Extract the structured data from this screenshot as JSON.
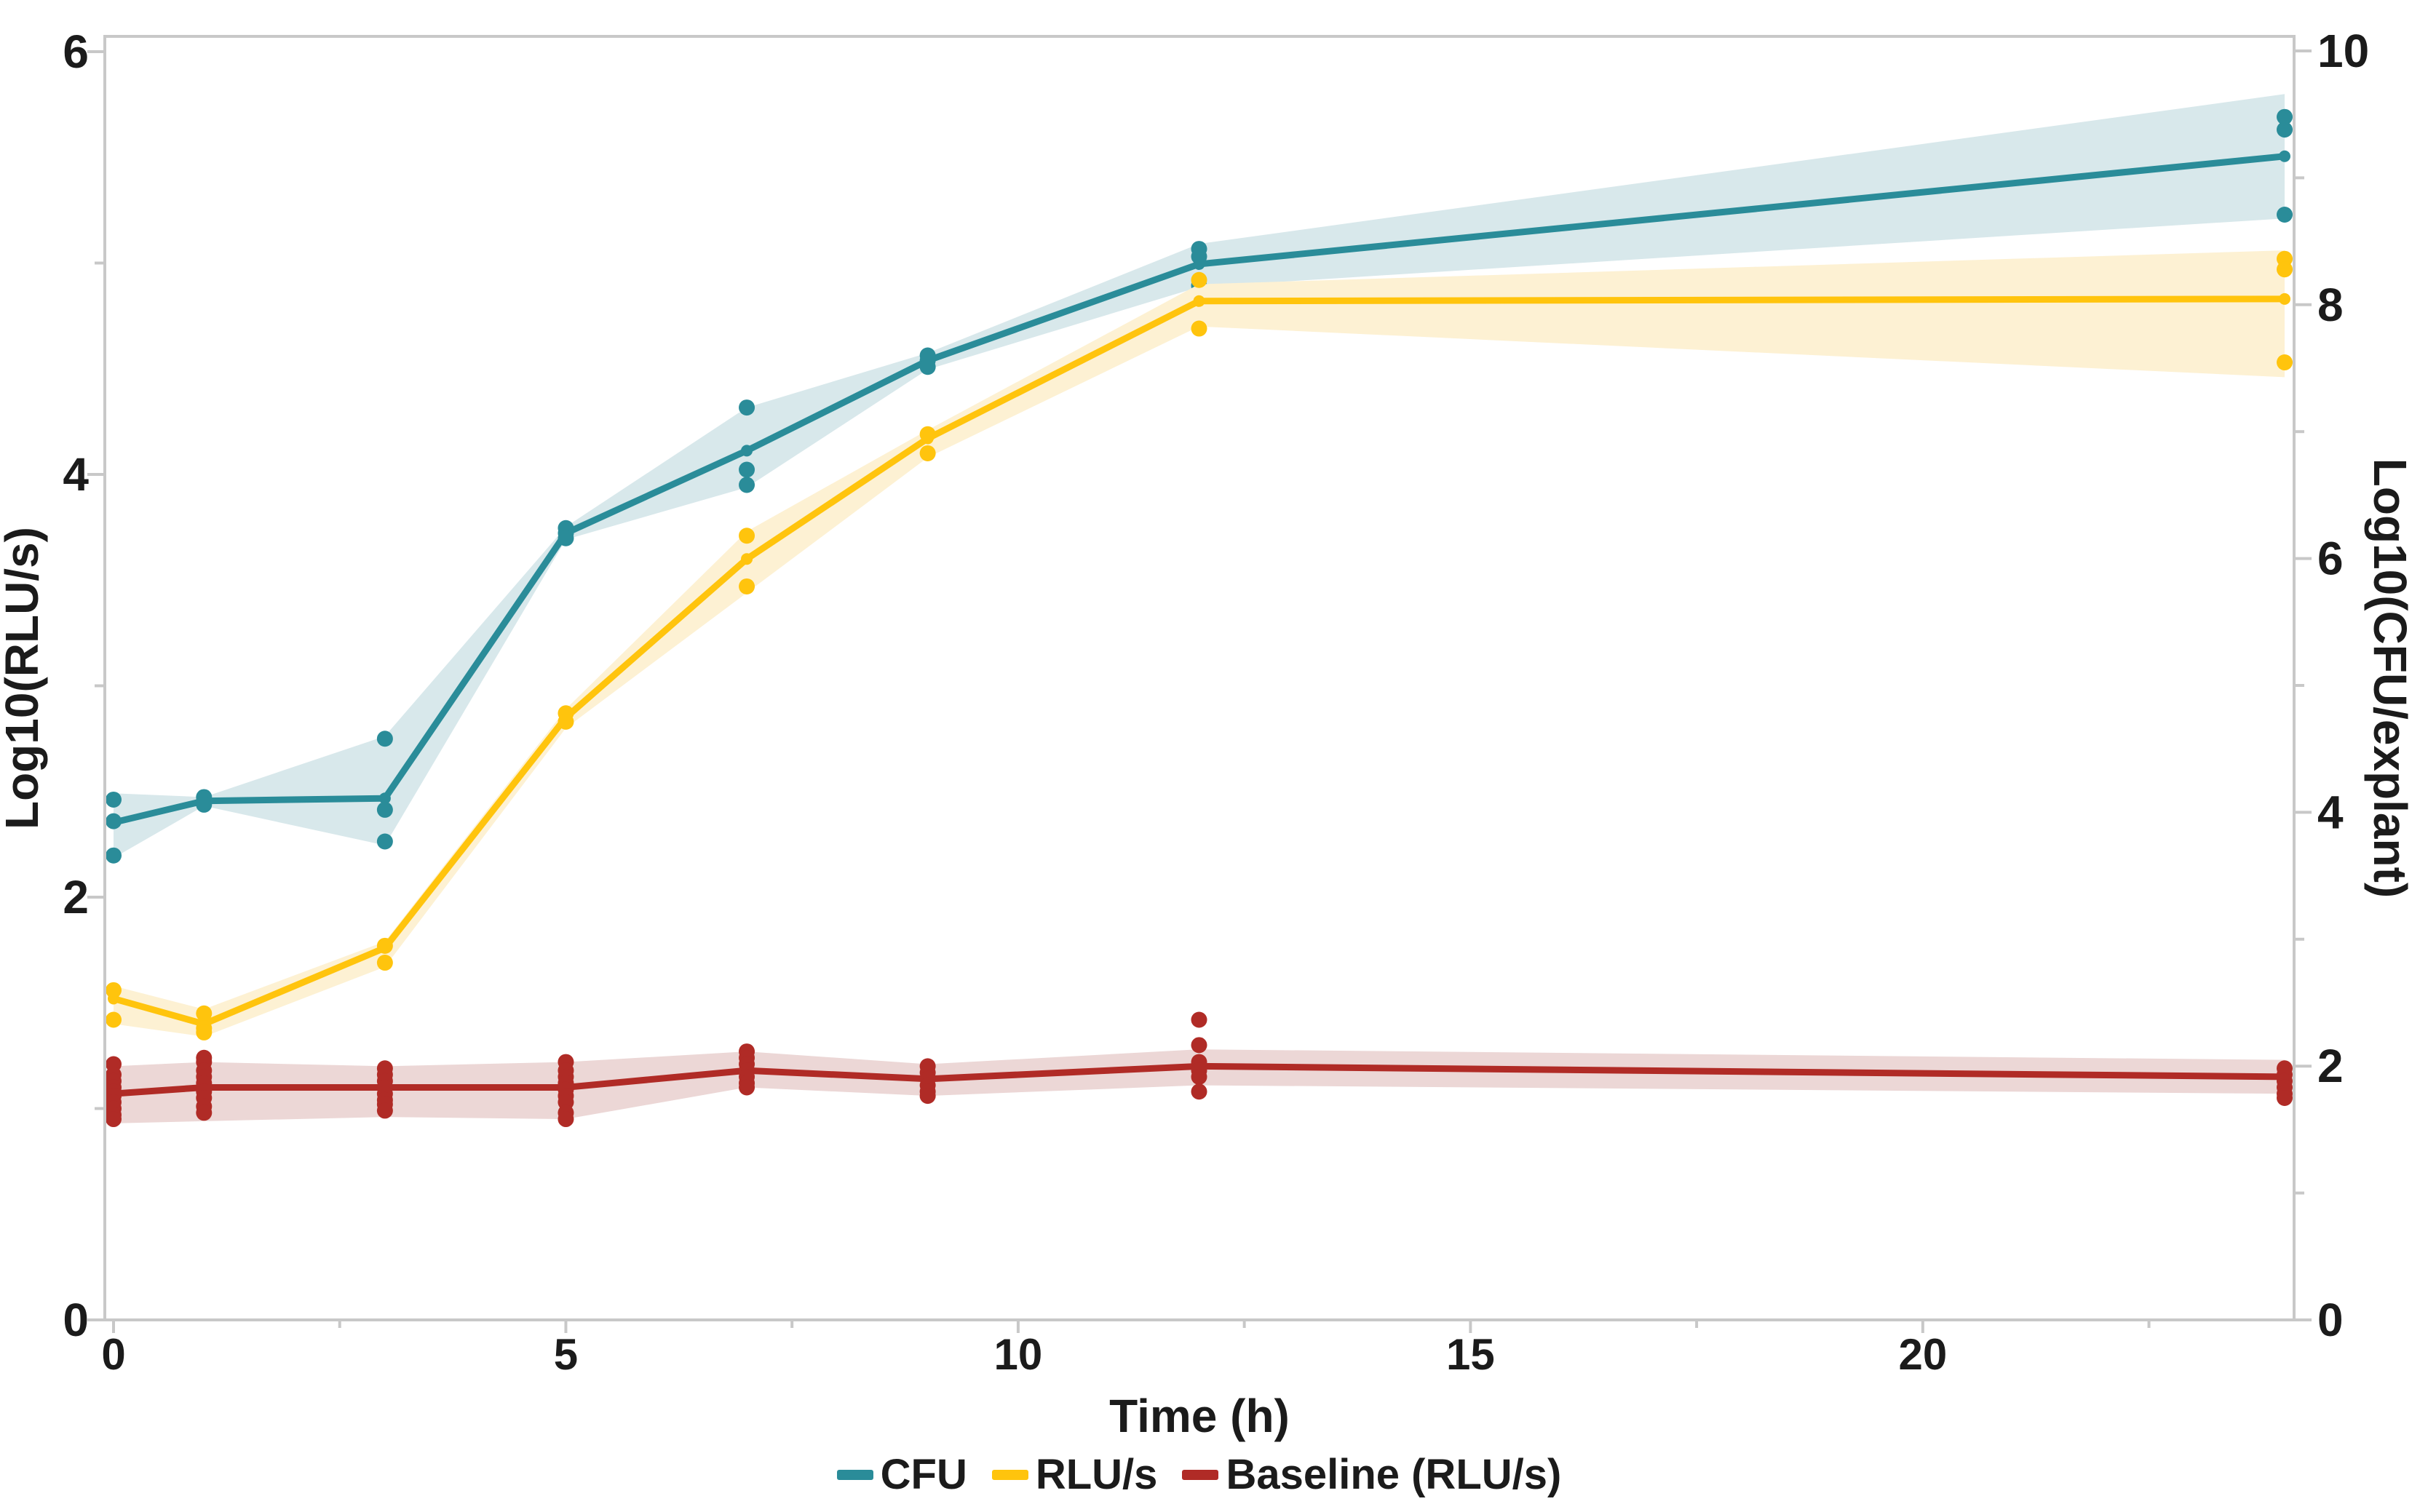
{
  "figure": {
    "xlabel": "Time (h)",
    "ylabel_left": "Log10(RLU/s)",
    "ylabel_right": "Log10(CFU/explant)"
  },
  "chart_data": {
    "type": "line",
    "title": "",
    "xlabel": "Time (h)",
    "ylabel_left": "Log10(RLU/s)",
    "ylabel_right": "Log10(CFU/explant)",
    "x": [
      0,
      1,
      3,
      5,
      7,
      9,
      12,
      24
    ],
    "axes": {
      "x": {
        "min": 0,
        "max": 24,
        "major_ticks": [
          0,
          5,
          10,
          15,
          20
        ],
        "minor_ticks": [
          2.5,
          7.5,
          12.5,
          17.5,
          22.5
        ]
      },
      "left": {
        "min": 0,
        "max": 6,
        "major_ticks": [
          0,
          2,
          4,
          6
        ],
        "minor_ticks": [
          1,
          3,
          5
        ]
      },
      "right": {
        "min": 0,
        "max": 10,
        "major_ticks": [
          0,
          2,
          4,
          6,
          8,
          10
        ],
        "minor_ticks": [
          1,
          3,
          5,
          7,
          9
        ]
      }
    },
    "grid": false,
    "legend_position": "bottom-center",
    "colors": {
      "frame": "#c8c8c8",
      "tick_text": "#1b1b1b"
    },
    "series": [
      {
        "name": "CFU",
        "axis": "right",
        "color": "#2a8c99",
        "band_color": "#d8e8eb",
        "mean": [
          3.92,
          4.09,
          4.11,
          6.2,
          6.85,
          7.56,
          8.32,
          9.17
        ],
        "band_low": [
          3.64,
          4.05,
          3.74,
          6.15,
          6.56,
          7.49,
          8.14,
          8.68
        ],
        "band_high": [
          4.15,
          4.12,
          4.6,
          6.25,
          7.19,
          7.62,
          8.48,
          9.66
        ],
        "points": [
          [
            4.1,
            3.93,
            3.66
          ],
          [
            4.12,
            4.09,
            4.06
          ],
          [
            4.58,
            4.02,
            3.77
          ],
          [
            6.24,
            6.2,
            6.16
          ],
          [
            7.19,
            6.7,
            6.58
          ],
          [
            7.6,
            7.56,
            7.51
          ],
          [
            8.44,
            8.38,
            8.15
          ],
          [
            9.48,
            9.38,
            8.71
          ]
        ]
      },
      {
        "name": "RLU/s",
        "axis": "left",
        "color": "#ffc40d",
        "band_color": "#fdf1d3",
        "mean": [
          1.52,
          1.4,
          1.76,
          2.85,
          3.6,
          4.17,
          4.82,
          4.83
        ],
        "band_low": [
          1.4,
          1.34,
          1.67,
          2.8,
          3.44,
          4.08,
          4.7,
          4.46
        ],
        "band_high": [
          1.58,
          1.47,
          1.79,
          2.89,
          3.73,
          4.21,
          4.9,
          5.06
        ],
        "points": [
          [
            1.56,
            1.42
          ],
          [
            1.45,
            1.38,
            1.36
          ],
          [
            1.77,
            1.69
          ],
          [
            2.87,
            2.83
          ],
          [
            3.71,
            3.47
          ],
          [
            4.19,
            4.1
          ],
          [
            4.92,
            4.69
          ],
          [
            5.02,
            4.97,
            4.53
          ]
        ]
      },
      {
        "name": "Baseline (RLU/s)",
        "axis": "left",
        "color": "#b02b26",
        "band_color": "#ecd7d6",
        "mean": [
          1.07,
          1.1,
          1.1,
          1.1,
          1.18,
          1.14,
          1.2,
          1.15
        ],
        "band_low": [
          0.93,
          0.94,
          0.96,
          0.95,
          1.1,
          1.06,
          1.11,
          1.07
        ],
        "band_high": [
          1.2,
          1.22,
          1.2,
          1.22,
          1.27,
          1.21,
          1.28,
          1.23
        ],
        "points": [
          [
            1.21,
            1.16,
            1.13,
            1.1,
            1.08,
            1.06,
            1.03,
            1.0,
            0.97,
            0.95
          ],
          [
            1.24,
            1.22,
            1.18,
            1.15,
            1.12,
            1.08,
            1.05,
            1.01,
            0.98
          ],
          [
            1.19,
            1.16,
            1.13,
            1.1,
            1.07,
            1.04,
            1.02,
            0.99
          ],
          [
            1.22,
            1.18,
            1.15,
            1.12,
            1.09,
            1.06,
            1.03,
            0.98,
            0.95
          ],
          [
            1.27,
            1.24,
            1.21,
            1.18,
            1.15,
            1.12,
            1.1
          ],
          [
            1.2,
            1.17,
            1.14,
            1.11,
            1.08,
            1.06
          ],
          [
            1.42,
            1.3,
            1.22,
            1.18,
            1.15,
            1.08
          ],
          [
            1.19,
            1.16,
            1.13,
            1.1,
            1.07,
            1.05
          ]
        ]
      }
    ],
    "legend_items": [
      "CFU",
      "RLU/s",
      "Baseline (RLU/s)"
    ]
  }
}
